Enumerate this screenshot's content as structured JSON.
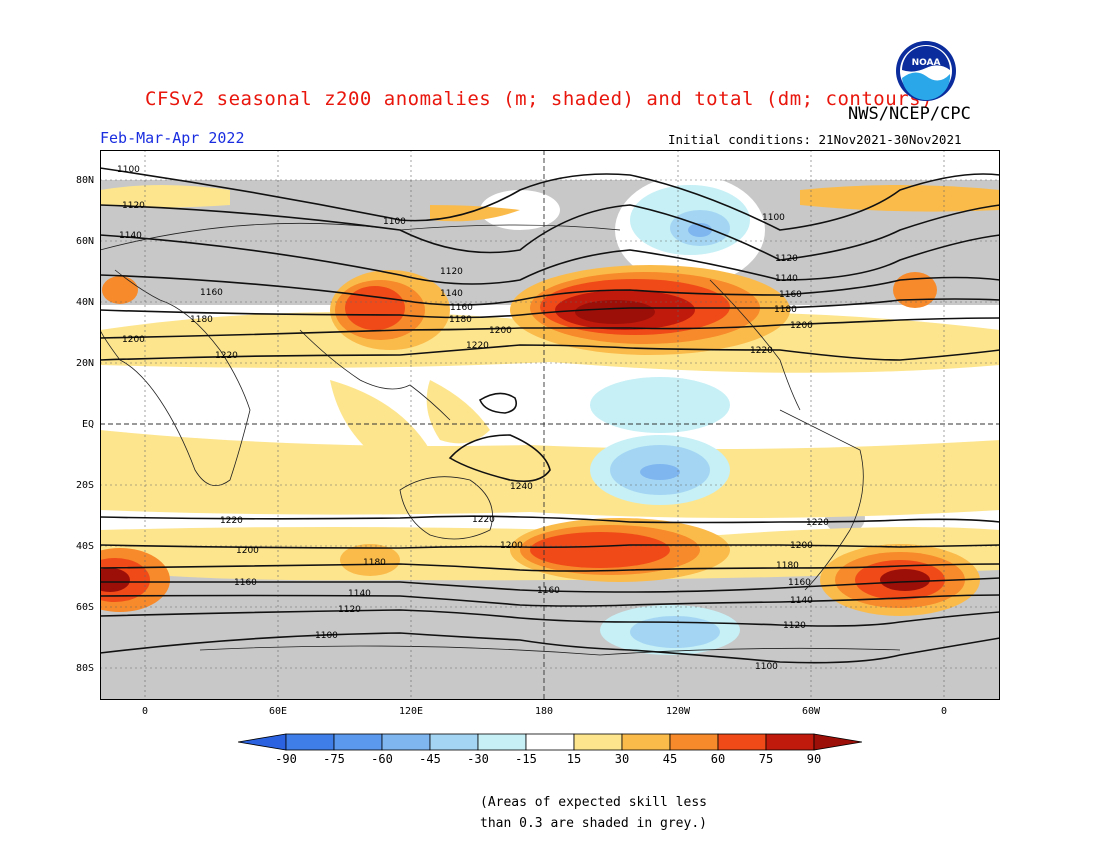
{
  "header": {
    "title": "CFSv2 seasonal z200 anomalies (m; shaded) and total (dm; contours)",
    "org": "NWS/NCEP/CPC",
    "period": "Feb-Mar-Apr 2022",
    "initial_conditions": "Initial conditions: 21Nov2021-30Nov2021",
    "logo_text": "NOAA"
  },
  "axes": {
    "lat_labels": [
      "80N",
      "60N",
      "40N",
      "20N",
      "EQ",
      "20S",
      "40S",
      "60S",
      "80S"
    ],
    "lon_labels": [
      "0",
      "60E",
      "120E",
      "180",
      "120W",
      "60W",
      "0"
    ]
  },
  "contours": [
    "1100",
    "1120",
    "1140",
    "1160",
    "1180",
    "1200",
    "1220",
    "1240"
  ],
  "colorbar": {
    "labels": [
      "-90",
      "-75",
      "-60",
      "-45",
      "-30",
      "-15",
      "15",
      "30",
      "45",
      "60",
      "75",
      "90"
    ],
    "colors": [
      "#2a62e0",
      "#3f7ee8",
      "#5a99ee",
      "#7fb6f0",
      "#a4d6f4",
      "#c6f0f6",
      "#ffffff",
      "#fde58e",
      "#fbbb4a",
      "#f78a2a",
      "#ef4a18",
      "#c01a0c",
      "#9c0f08"
    ],
    "skill_grey": "#c8c8c8"
  },
  "footnote": {
    "line1": "(Areas of expected skill less",
    "line2": "than 0.3 are shaded in grey.)"
  }
}
